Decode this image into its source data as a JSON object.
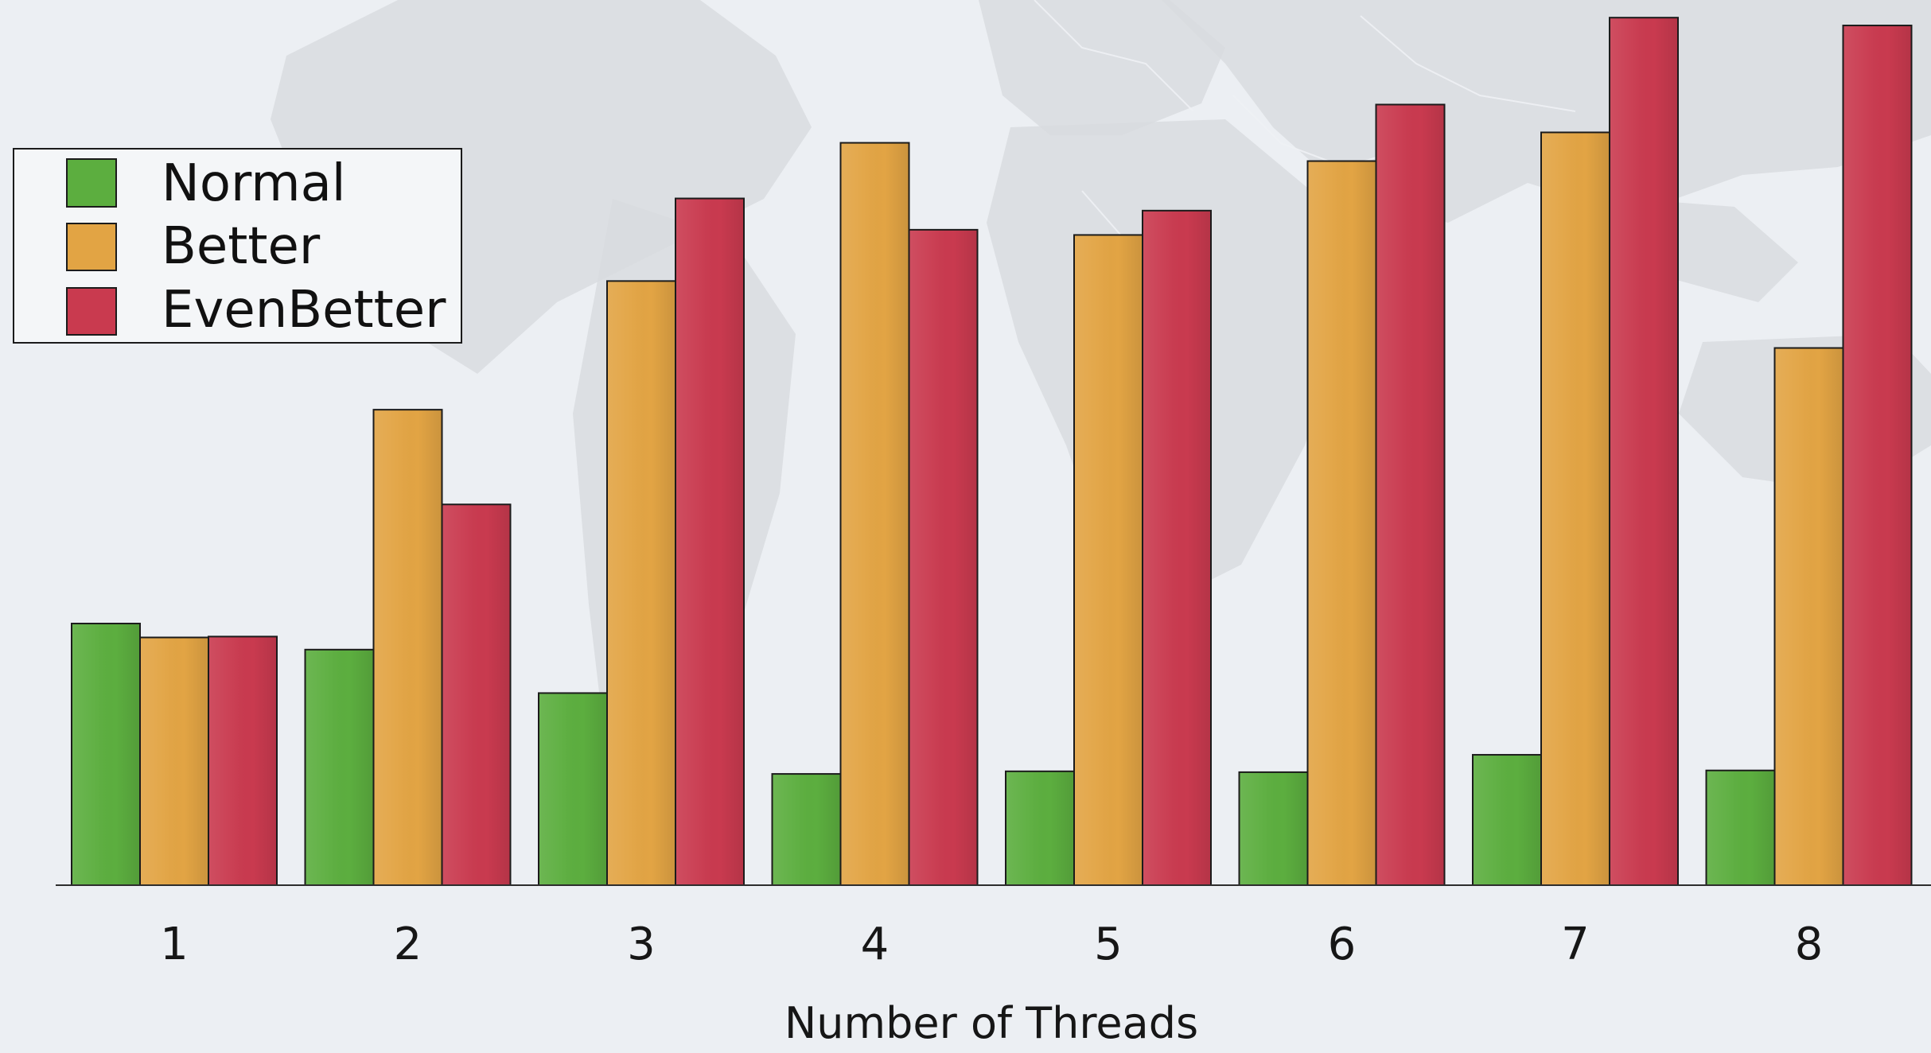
{
  "chart_data": {
    "type": "bar",
    "categories": [
      "1",
      "2",
      "3",
      "4",
      "5",
      "6",
      "7",
      "8"
    ],
    "xlabel": "Number of Threads",
    "ylabel": "",
    "ylim": [
      0,
      100
    ],
    "legend": "top-left",
    "grid": false,
    "series": [
      {
        "name": "Normal",
        "color": "#5cae3f",
        "values": [
          30.1,
          27.1,
          22.1,
          12.8,
          13.1,
          13.0,
          15.0,
          13.2
        ]
      },
      {
        "name": "Better",
        "color": "#e2a444",
        "values": [
          28.5,
          54.7,
          69.5,
          85.4,
          74.8,
          83.3,
          86.6,
          61.8
        ]
      },
      {
        "name": "EvenBetter",
        "color": "#c93a4f",
        "values": [
          28.6,
          43.8,
          79.0,
          75.4,
          77.6,
          89.8,
          99.8,
          98.9
        ]
      }
    ]
  }
}
